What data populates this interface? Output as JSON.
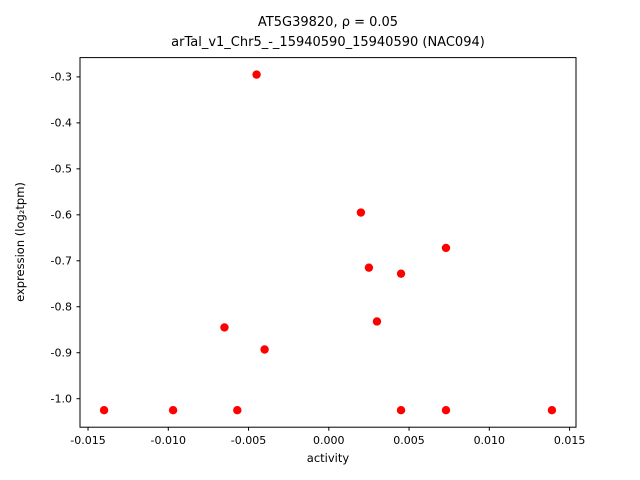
{
  "chart_data": {
    "type": "scatter",
    "title_line1": "AT5G39820, ρ = 0.05",
    "title_line2": "arTal_v1_Chr5_-_15940590_15940590 (NAC094)",
    "xlabel": "activity",
    "ylabel": "expression (log₂tpm)",
    "xlim": [
      -0.0155,
      0.0154
    ],
    "ylim": [
      -1.062,
      -0.258
    ],
    "x_ticks": [
      -0.015,
      -0.01,
      -0.005,
      0.0,
      0.005,
      0.01,
      0.015
    ],
    "x_tick_labels": [
      "-0.015",
      "-0.010",
      "-0.005",
      "0.000",
      "0.005",
      "0.010",
      "0.015"
    ],
    "y_ticks": [
      -1.0,
      -0.9,
      -0.8,
      -0.7,
      -0.6,
      -0.5,
      -0.4,
      -0.3
    ],
    "y_tick_labels": [
      "-1.0",
      "-0.9",
      "-0.8",
      "-0.7",
      "-0.6",
      "-0.5",
      "-0.4",
      "-0.3"
    ],
    "grid": false,
    "legend_position": "none",
    "marker": "circle",
    "marker_color": "#ff0000",
    "points": [
      [
        -0.014,
        -1.025
      ],
      [
        -0.0097,
        -1.025
      ],
      [
        -0.0065,
        -0.845
      ],
      [
        -0.0057,
        -1.025
      ],
      [
        -0.0045,
        -0.295
      ],
      [
        -0.004,
        -0.893
      ],
      [
        0.002,
        -0.595
      ],
      [
        0.0025,
        -0.715
      ],
      [
        0.003,
        -0.832
      ],
      [
        0.0045,
        -0.728
      ],
      [
        0.0045,
        -1.025
      ],
      [
        0.0073,
        -0.672
      ],
      [
        0.0073,
        -1.025
      ],
      [
        0.0139,
        -1.025
      ]
    ]
  }
}
